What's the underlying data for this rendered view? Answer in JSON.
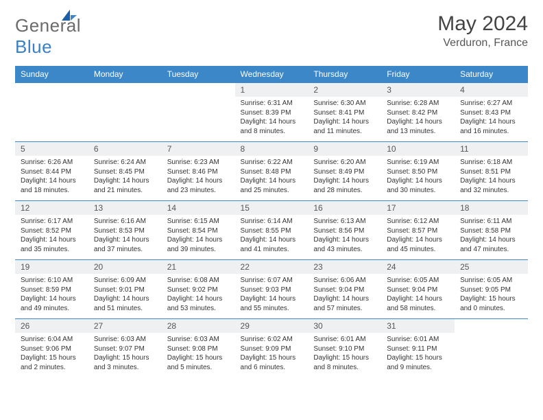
{
  "brand": {
    "general": "General",
    "blue": "Blue"
  },
  "title": "May 2024",
  "location": "Verduron, France",
  "colors": {
    "header_bg": "#3b87c8",
    "header_fg": "#ffffff",
    "daynum_bg": "#eef0f2",
    "text": "#333333",
    "logo_gray": "#6b6b6b",
    "logo_blue": "#3b7fc4",
    "border": "#3b87c8"
  },
  "day_headers": [
    "Sunday",
    "Monday",
    "Tuesday",
    "Wednesday",
    "Thursday",
    "Friday",
    "Saturday"
  ],
  "weeks": [
    [
      {
        "n": "",
        "sr": "",
        "ss": "",
        "dl": ""
      },
      {
        "n": "",
        "sr": "",
        "ss": "",
        "dl": ""
      },
      {
        "n": "",
        "sr": "",
        "ss": "",
        "dl": ""
      },
      {
        "n": "1",
        "sr": "Sunrise: 6:31 AM",
        "ss": "Sunset: 8:39 PM",
        "dl": "Daylight: 14 hours and 8 minutes."
      },
      {
        "n": "2",
        "sr": "Sunrise: 6:30 AM",
        "ss": "Sunset: 8:41 PM",
        "dl": "Daylight: 14 hours and 11 minutes."
      },
      {
        "n": "3",
        "sr": "Sunrise: 6:28 AM",
        "ss": "Sunset: 8:42 PM",
        "dl": "Daylight: 14 hours and 13 minutes."
      },
      {
        "n": "4",
        "sr": "Sunrise: 6:27 AM",
        "ss": "Sunset: 8:43 PM",
        "dl": "Daylight: 14 hours and 16 minutes."
      }
    ],
    [
      {
        "n": "5",
        "sr": "Sunrise: 6:26 AM",
        "ss": "Sunset: 8:44 PM",
        "dl": "Daylight: 14 hours and 18 minutes."
      },
      {
        "n": "6",
        "sr": "Sunrise: 6:24 AM",
        "ss": "Sunset: 8:45 PM",
        "dl": "Daylight: 14 hours and 21 minutes."
      },
      {
        "n": "7",
        "sr": "Sunrise: 6:23 AM",
        "ss": "Sunset: 8:46 PM",
        "dl": "Daylight: 14 hours and 23 minutes."
      },
      {
        "n": "8",
        "sr": "Sunrise: 6:22 AM",
        "ss": "Sunset: 8:48 PM",
        "dl": "Daylight: 14 hours and 25 minutes."
      },
      {
        "n": "9",
        "sr": "Sunrise: 6:20 AM",
        "ss": "Sunset: 8:49 PM",
        "dl": "Daylight: 14 hours and 28 minutes."
      },
      {
        "n": "10",
        "sr": "Sunrise: 6:19 AM",
        "ss": "Sunset: 8:50 PM",
        "dl": "Daylight: 14 hours and 30 minutes."
      },
      {
        "n": "11",
        "sr": "Sunrise: 6:18 AM",
        "ss": "Sunset: 8:51 PM",
        "dl": "Daylight: 14 hours and 32 minutes."
      }
    ],
    [
      {
        "n": "12",
        "sr": "Sunrise: 6:17 AM",
        "ss": "Sunset: 8:52 PM",
        "dl": "Daylight: 14 hours and 35 minutes."
      },
      {
        "n": "13",
        "sr": "Sunrise: 6:16 AM",
        "ss": "Sunset: 8:53 PM",
        "dl": "Daylight: 14 hours and 37 minutes."
      },
      {
        "n": "14",
        "sr": "Sunrise: 6:15 AM",
        "ss": "Sunset: 8:54 PM",
        "dl": "Daylight: 14 hours and 39 minutes."
      },
      {
        "n": "15",
        "sr": "Sunrise: 6:14 AM",
        "ss": "Sunset: 8:55 PM",
        "dl": "Daylight: 14 hours and 41 minutes."
      },
      {
        "n": "16",
        "sr": "Sunrise: 6:13 AM",
        "ss": "Sunset: 8:56 PM",
        "dl": "Daylight: 14 hours and 43 minutes."
      },
      {
        "n": "17",
        "sr": "Sunrise: 6:12 AM",
        "ss": "Sunset: 8:57 PM",
        "dl": "Daylight: 14 hours and 45 minutes."
      },
      {
        "n": "18",
        "sr": "Sunrise: 6:11 AM",
        "ss": "Sunset: 8:58 PM",
        "dl": "Daylight: 14 hours and 47 minutes."
      }
    ],
    [
      {
        "n": "19",
        "sr": "Sunrise: 6:10 AM",
        "ss": "Sunset: 8:59 PM",
        "dl": "Daylight: 14 hours and 49 minutes."
      },
      {
        "n": "20",
        "sr": "Sunrise: 6:09 AM",
        "ss": "Sunset: 9:01 PM",
        "dl": "Daylight: 14 hours and 51 minutes."
      },
      {
        "n": "21",
        "sr": "Sunrise: 6:08 AM",
        "ss": "Sunset: 9:02 PM",
        "dl": "Daylight: 14 hours and 53 minutes."
      },
      {
        "n": "22",
        "sr": "Sunrise: 6:07 AM",
        "ss": "Sunset: 9:03 PM",
        "dl": "Daylight: 14 hours and 55 minutes."
      },
      {
        "n": "23",
        "sr": "Sunrise: 6:06 AM",
        "ss": "Sunset: 9:04 PM",
        "dl": "Daylight: 14 hours and 57 minutes."
      },
      {
        "n": "24",
        "sr": "Sunrise: 6:05 AM",
        "ss": "Sunset: 9:04 PM",
        "dl": "Daylight: 14 hours and 58 minutes."
      },
      {
        "n": "25",
        "sr": "Sunrise: 6:05 AM",
        "ss": "Sunset: 9:05 PM",
        "dl": "Daylight: 15 hours and 0 minutes."
      }
    ],
    [
      {
        "n": "26",
        "sr": "Sunrise: 6:04 AM",
        "ss": "Sunset: 9:06 PM",
        "dl": "Daylight: 15 hours and 2 minutes."
      },
      {
        "n": "27",
        "sr": "Sunrise: 6:03 AM",
        "ss": "Sunset: 9:07 PM",
        "dl": "Daylight: 15 hours and 3 minutes."
      },
      {
        "n": "28",
        "sr": "Sunrise: 6:03 AM",
        "ss": "Sunset: 9:08 PM",
        "dl": "Daylight: 15 hours and 5 minutes."
      },
      {
        "n": "29",
        "sr": "Sunrise: 6:02 AM",
        "ss": "Sunset: 9:09 PM",
        "dl": "Daylight: 15 hours and 6 minutes."
      },
      {
        "n": "30",
        "sr": "Sunrise: 6:01 AM",
        "ss": "Sunset: 9:10 PM",
        "dl": "Daylight: 15 hours and 8 minutes."
      },
      {
        "n": "31",
        "sr": "Sunrise: 6:01 AM",
        "ss": "Sunset: 9:11 PM",
        "dl": "Daylight: 15 hours and 9 minutes."
      },
      {
        "n": "",
        "sr": "",
        "ss": "",
        "dl": ""
      }
    ]
  ]
}
